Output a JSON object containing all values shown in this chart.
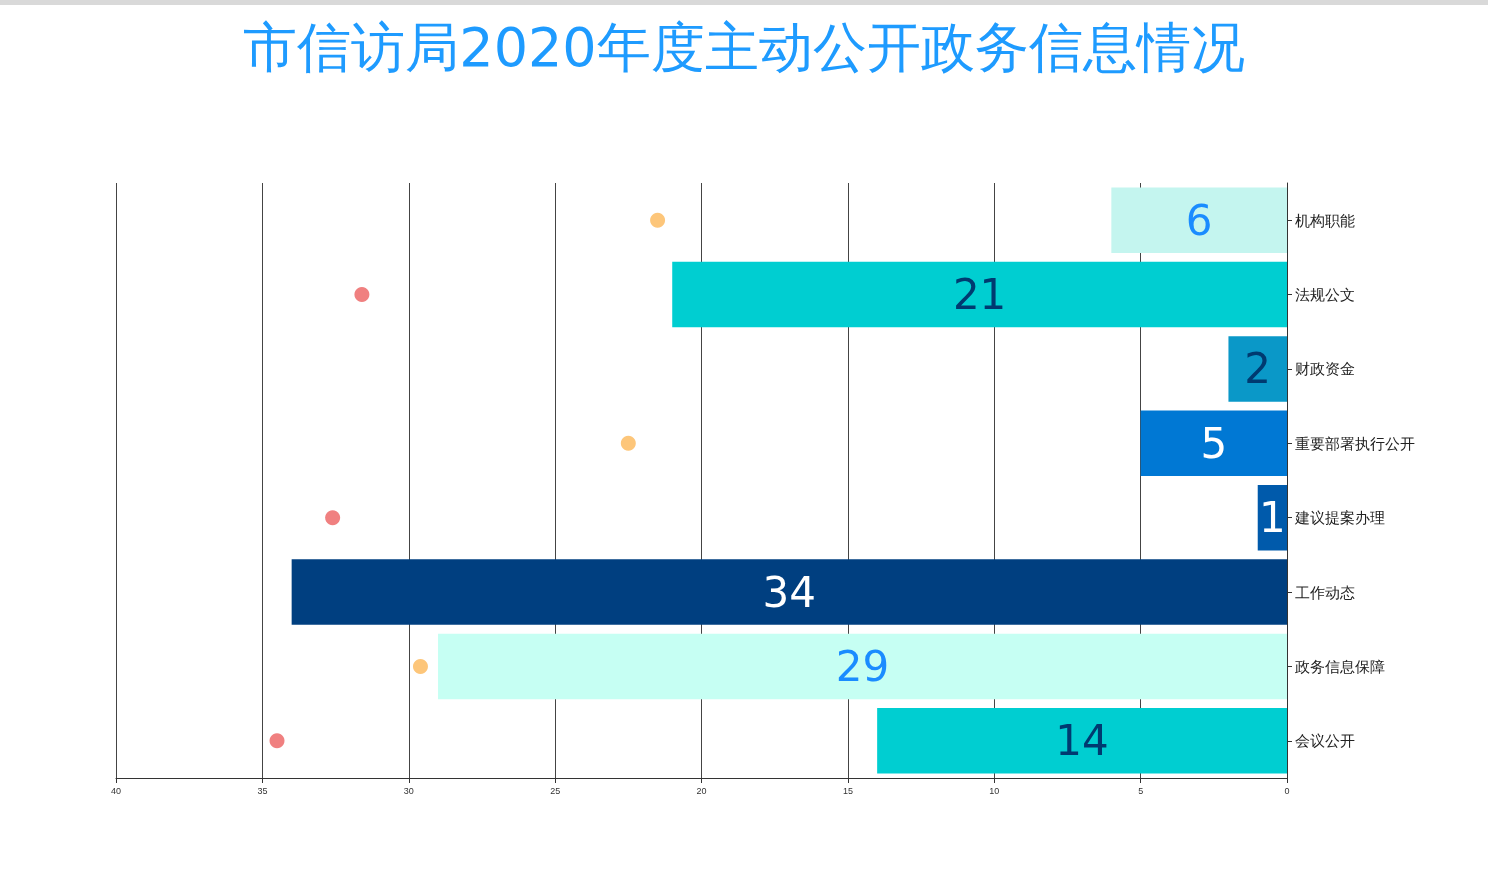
{
  "chart_data": {
    "type": "bar",
    "orientation": "horizontal",
    "title": "市信访局2020年度主动公开政务信息情况",
    "categories": [
      "机构职能",
      "法规公文",
      "财政资金",
      "重要部署执行公开",
      "建议提案办理",
      "工作动态",
      "政务信息保障",
      "会议公开"
    ],
    "series": [
      {
        "values": [
          6,
          21,
          2,
          5,
          1,
          34,
          29,
          14
        ],
        "value_labels": [
          "6",
          "21",
          "2",
          "5",
          "1",
          "34",
          "29",
          "14"
        ],
        "colors": [
          "#c4f5ef",
          "#00ced1",
          "#0a98c8",
          "#0078d4",
          "#005aab",
          "#003f80",
          "#c6fff3",
          "#00ced1"
        ]
      },
      {
        "type": "scatter",
        "color": "#fdc67a",
        "values": [
          21.5,
          null,
          null,
          22.5,
          null,
          null,
          29.6,
          null
        ]
      },
      {
        "type": "scatter",
        "color": "#f08080",
        "values": [
          null,
          31.6,
          null,
          null,
          32.6,
          null,
          null,
          34.5
        ]
      }
    ],
    "xlim": [
      40,
      0
    ],
    "xticks": [
      0,
      5,
      10,
      15,
      20,
      25,
      30,
      35,
      40
    ],
    "grid": "x",
    "marker": "circle"
  }
}
